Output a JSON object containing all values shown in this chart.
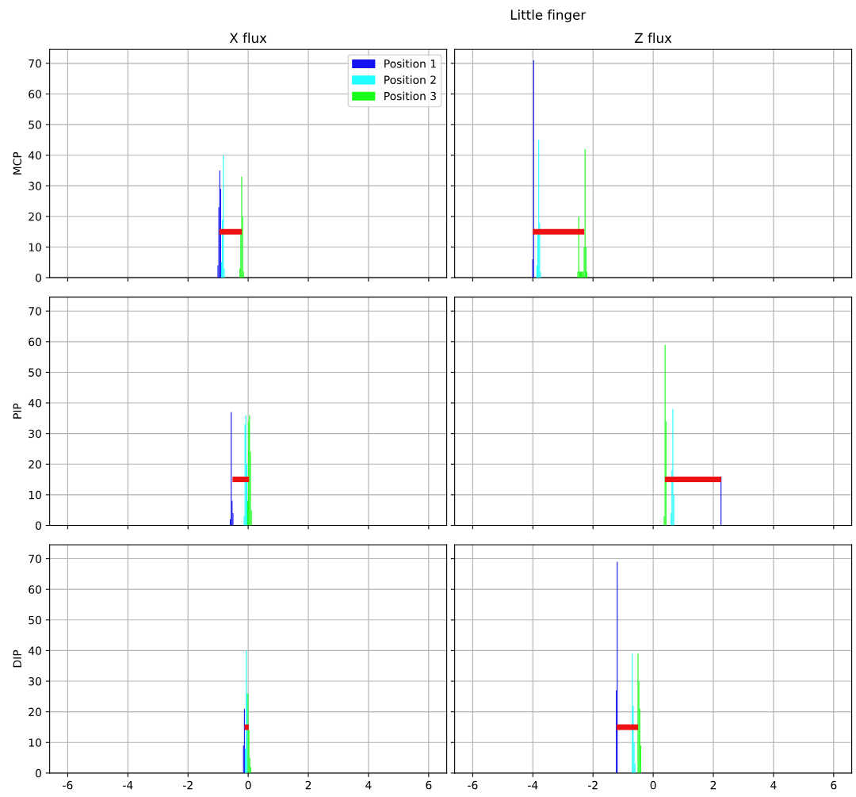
{
  "chart_data": [
    {
      "type": "histogram",
      "title": "X flux",
      "ylabel": "MCP",
      "annotations": [
        "Little finger"
      ],
      "xlim": [
        -6.6,
        6.6
      ],
      "ylim": [
        0,
        74.55
      ],
      "xticks": [
        -6,
        -4,
        -2,
        0,
        2,
        4,
        6
      ],
      "yticks": [
        0,
        10,
        20,
        30,
        40,
        50,
        60,
        70
      ],
      "grid": true,
      "legend": "top right",
      "tick_labels": "y",
      "series": [
        {
          "name": "Position 1",
          "color": "#1414f0",
          "bins": [
            -1.02,
            -0.99,
            -0.96,
            -0.93,
            -0.9
          ],
          "values": [
            4,
            23,
            35,
            29
          ]
        },
        {
          "name": "Position 2",
          "color": "#20ffff",
          "bins": [
            -0.9,
            -0.87,
            -0.84,
            -0.81,
            -0.78
          ],
          "values": [
            5,
            19,
            40,
            3
          ]
        },
        {
          "name": "Position 3",
          "color": "#1aff1a",
          "bins": [
            -0.29,
            -0.26,
            -0.23,
            -0.2,
            -0.17,
            -0.14
          ],
          "values": [
            3,
            14,
            33,
            20,
            2
          ]
        },
        {
          "type": "line",
          "color": "#ee1111",
          "x": [
            -0.96,
            -0.21
          ],
          "values": [
            15,
            15
          ]
        }
      ]
    },
    {
      "type": "histogram",
      "title": "Z flux",
      "xlim": [
        -6.6,
        6.6
      ],
      "ylim": [
        0,
        74.55
      ],
      "xticks": [
        -6,
        -4,
        -2,
        0,
        2,
        4,
        6
      ],
      "yticks": [
        0,
        10,
        20,
        30,
        40,
        50,
        60,
        70
      ],
      "grid": true,
      "tick_labels": false,
      "series": [
        {
          "color": "#1414f0",
          "bins": [
            -4.02,
            -3.99,
            -3.96
          ],
          "values": [
            6,
            71
          ]
        },
        {
          "color": "#20ffff",
          "bins": [
            -3.88,
            -3.85,
            -3.82,
            -3.79,
            -3.76,
            -3.73
          ],
          "values": [
            4,
            14,
            45,
            18,
            2
          ]
        },
        {
          "color": "#1aff1a",
          "bins": [
            -2.52,
            -2.49,
            -2.46,
            -2.43,
            -2.4,
            -2.37,
            -2.34,
            -2.31,
            -2.28,
            -2.25,
            -2.22,
            -2.19
          ],
          "values": [
            2,
            20,
            2,
            2,
            2,
            2,
            2,
            10,
            42,
            10,
            2
          ]
        },
        {
          "type": "line",
          "color": "#ee1111",
          "x": [
            -4.0,
            -2.29
          ],
          "values": [
            15,
            15
          ]
        }
      ]
    },
    {
      "type": "histogram",
      "ylabel": "PIP",
      "xlim": [
        -6.6,
        6.6
      ],
      "ylim": [
        0,
        74.55
      ],
      "xticks": [
        -6,
        -4,
        -2,
        0,
        2,
        4,
        6
      ],
      "yticks": [
        0,
        10,
        20,
        30,
        40,
        50,
        60,
        70
      ],
      "grid": true,
      "tick_labels": "y",
      "series": [
        {
          "color": "#1414f0",
          "bins": [
            -0.61,
            -0.58,
            -0.55,
            -0.52,
            -0.49
          ],
          "values": [
            2,
            37,
            8,
            4
          ]
        },
        {
          "color": "#20ffff",
          "bins": [
            -0.15,
            -0.12,
            -0.09,
            -0.06,
            -0.03
          ],
          "values": [
            3,
            33,
            36,
            20
          ]
        },
        {
          "color": "#1aff1a",
          "bins": [
            -0.03,
            0.0,
            0.03,
            0.06,
            0.09,
            0.12
          ],
          "values": [
            8,
            34,
            36,
            24,
            5
          ]
        },
        {
          "type": "line",
          "color": "#ee1111",
          "x": [
            -0.52,
            0.03
          ],
          "values": [
            15,
            15
          ]
        }
      ]
    },
    {
      "type": "histogram",
      "xlim": [
        -6.6,
        6.6
      ],
      "ylim": [
        0,
        74.55
      ],
      "xticks": [
        -6,
        -4,
        -2,
        0,
        2,
        4,
        6
      ],
      "yticks": [
        0,
        10,
        20,
        30,
        40,
        50,
        60,
        70
      ],
      "grid": true,
      "tick_labels": false,
      "series": [
        {
          "color": "#1414f0",
          "bins": [
            2.24,
            2.27
          ],
          "values": [
            16
          ]
        },
        {
          "color": "#20ffff",
          "bins": [
            0.58,
            0.61,
            0.64,
            0.67,
            0.7
          ],
          "values": [
            4,
            18,
            38,
            10
          ]
        },
        {
          "color": "#1aff1a",
          "bins": [
            0.35,
            0.38,
            0.41,
            0.44
          ],
          "values": [
            3,
            59,
            34
          ]
        },
        {
          "type": "line",
          "color": "#ee1111",
          "x": [
            0.39,
            2.26
          ],
          "values": [
            15,
            15
          ]
        }
      ]
    },
    {
      "type": "histogram",
      "ylabel": "DIP",
      "xlim": [
        -6.6,
        6.6
      ],
      "ylim": [
        0,
        74.55
      ],
      "xticks": [
        -6,
        -4,
        -2,
        0,
        2,
        4,
        6
      ],
      "yticks": [
        0,
        10,
        20,
        30,
        40,
        50,
        60,
        70
      ],
      "grid": true,
      "series": [
        {
          "color": "#1414f0",
          "bins": [
            -0.17,
            -0.14,
            -0.11
          ],
          "values": [
            9,
            21
          ]
        },
        {
          "color": "#20ffff",
          "bins": [
            -0.11,
            -0.08,
            -0.05,
            -0.02
          ],
          "values": [
            8,
            40,
            26
          ]
        },
        {
          "color": "#1aff1a",
          "bins": [
            -0.02,
            0.01,
            0.04,
            0.07,
            0.1
          ],
          "values": [
            26,
            14,
            5,
            2
          ]
        },
        {
          "type": "line",
          "color": "#ee1111",
          "x": [
            -0.12,
            0.02
          ],
          "values": [
            15,
            15
          ]
        }
      ]
    },
    {
      "type": "histogram",
      "xlim": [
        -6.6,
        6.6
      ],
      "ylim": [
        0,
        74.55
      ],
      "xticks": [
        -6,
        -4,
        -2,
        0,
        2,
        4,
        6
      ],
      "yticks": [
        0,
        10,
        20,
        30,
        40,
        50,
        60,
        70
      ],
      "grid": true,
      "tick_labels": "x",
      "series": [
        {
          "color": "#1414f0",
          "bins": [
            -1.24,
            -1.21,
            -1.18
          ],
          "values": [
            27,
            69
          ]
        },
        {
          "color": "#20ffff",
          "bins": [
            -0.71,
            -0.68,
            -0.65,
            -0.62,
            -0.59
          ],
          "values": [
            39,
            22,
            10,
            3
          ]
        },
        {
          "color": "#1aff1a",
          "bins": [
            -0.52,
            -0.49,
            -0.46,
            -0.43,
            -0.4
          ],
          "values": [
            39,
            30,
            21,
            9
          ]
        },
        {
          "type": "line",
          "color": "#ee1111",
          "x": [
            -1.22,
            -0.5
          ],
          "values": [
            15,
            15
          ]
        }
      ]
    }
  ]
}
